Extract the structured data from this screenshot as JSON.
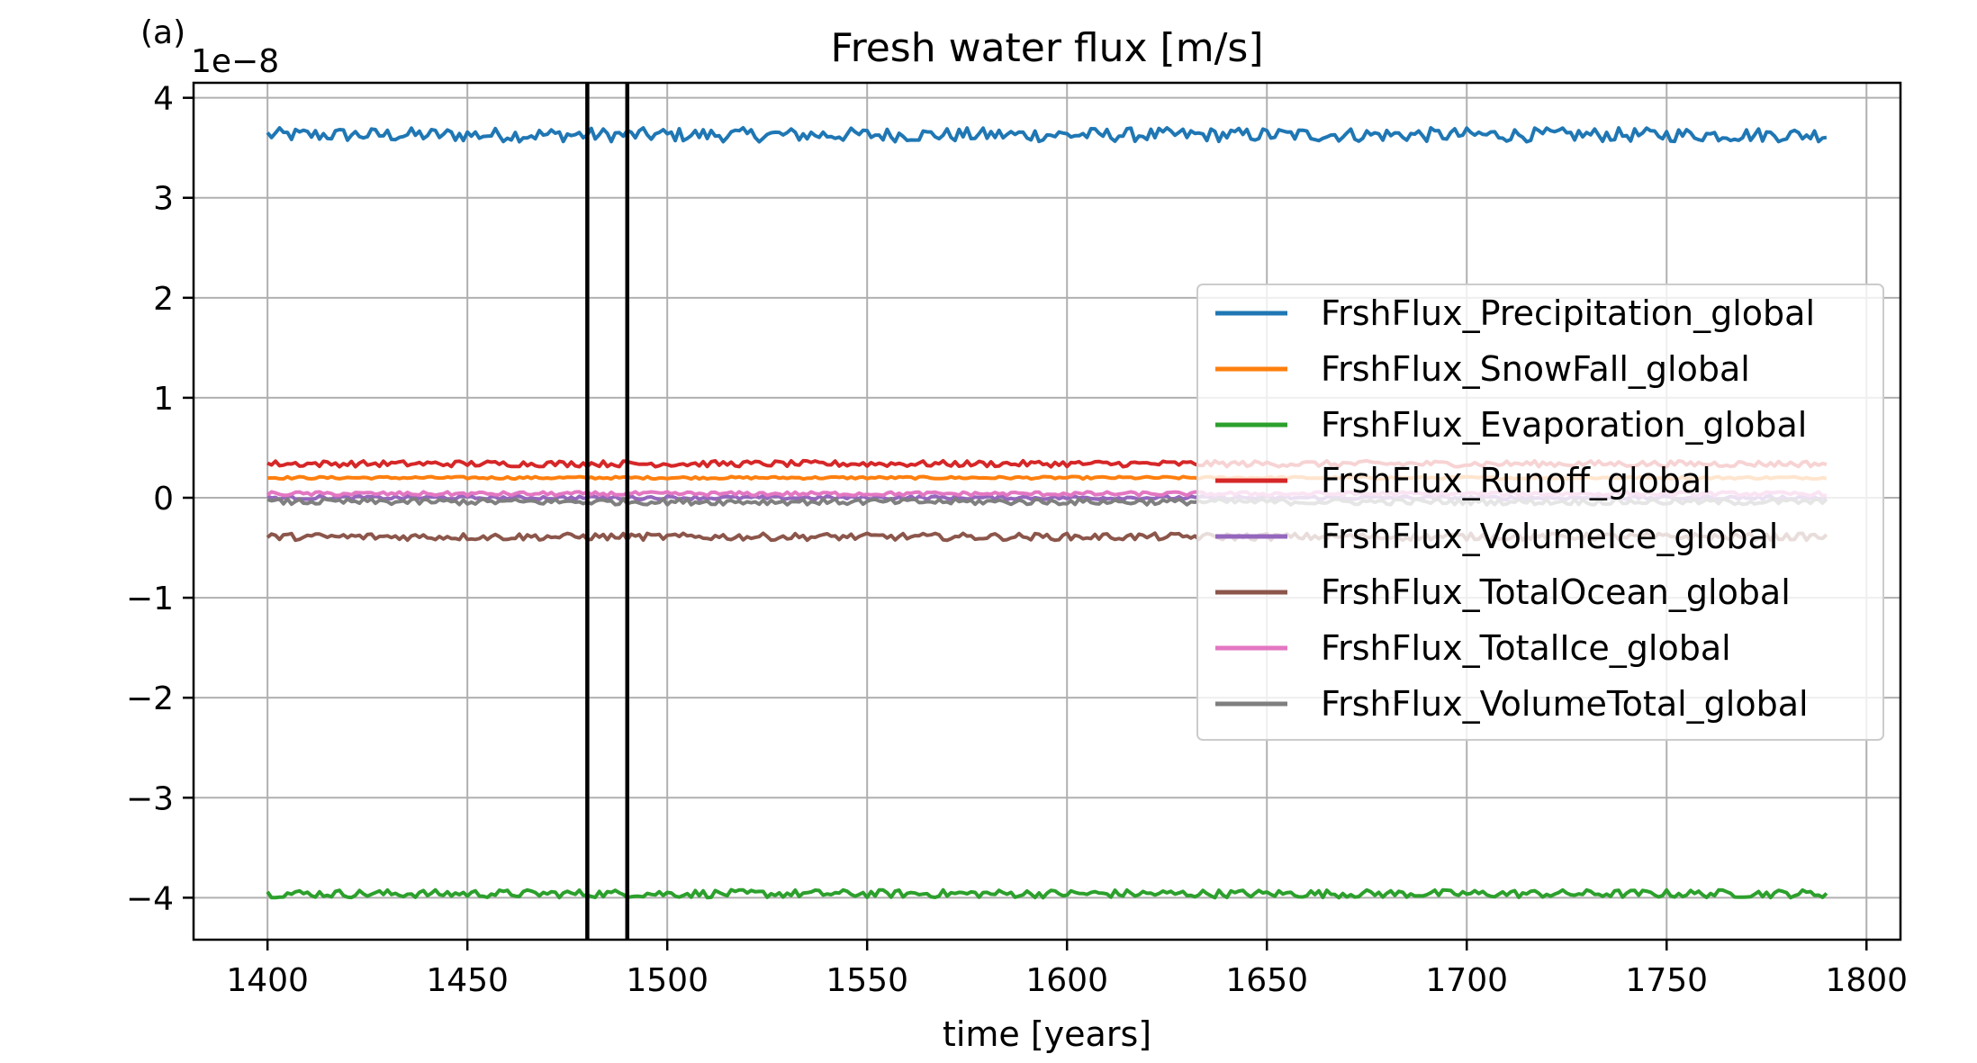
{
  "panel_label": "(a)",
  "chart_data": {
    "type": "line",
    "title": "Fresh water flux [m/s]",
    "xlabel": "time [years]",
    "ylabel": "",
    "y_offset_label": "1e−8",
    "x_ticks": [
      1400,
      1450,
      1500,
      1550,
      1600,
      1650,
      1700,
      1750,
      1800
    ],
    "y_ticks": [
      4,
      3,
      2,
      1,
      0,
      -1,
      -2,
      -3,
      -4
    ],
    "y_tick_labels": [
      "4",
      "3",
      "2",
      "1",
      "0",
      "−1",
      "−2",
      "−3",
      "−4"
    ],
    "xlim": [
      1381.5,
      1808.5
    ],
    "ylim": [
      -4.42,
      4.15
    ],
    "grid": true,
    "legend_position": "center-right",
    "x_range": [
      1400,
      1790
    ],
    "vertical_lines": [
      1480,
      1490
    ],
    "series": [
      {
        "name": "FrshFlux_Precipitation_global",
        "color": "#1f77b4",
        "mean": 3.63,
        "noise": 0.07
      },
      {
        "name": "FrshFlux_SnowFall_global",
        "color": "#ff7f0e",
        "mean": 0.2,
        "noise": 0.012
      },
      {
        "name": "FrshFlux_Evaporation_global",
        "color": "#2ca02c",
        "mean": -3.96,
        "noise": 0.04
      },
      {
        "name": "FrshFlux_Runoff_global",
        "color": "#d62728",
        "mean": 0.34,
        "noise": 0.03
      },
      {
        "name": "FrshFlux_VolumeIce_global",
        "color": "#9467bd",
        "mean": 0.0,
        "noise": 0.02
      },
      {
        "name": "FrshFlux_TotalOcean_global",
        "color": "#8c564b",
        "mean": -0.39,
        "noise": 0.035
      },
      {
        "name": "FrshFlux_TotalIce_global",
        "color": "#e377c2",
        "mean": 0.04,
        "noise": 0.02
      },
      {
        "name": "FrshFlux_VolumeTotal_global",
        "color": "#7f7f7f",
        "mean": -0.04,
        "noise": 0.03
      }
    ]
  }
}
